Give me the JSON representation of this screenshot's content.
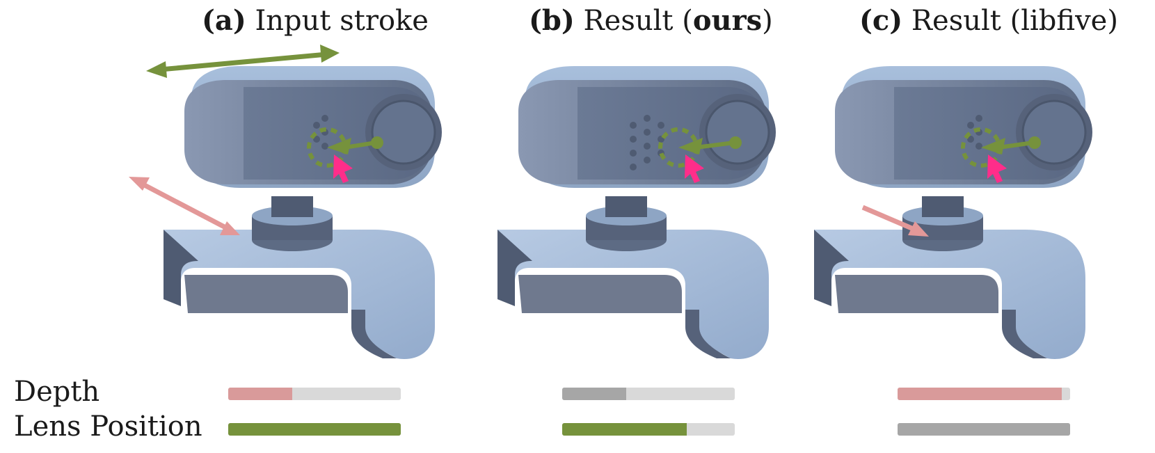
{
  "panels": [
    {
      "letter": "(a)",
      "text_before": " Input stroke",
      "emph": "",
      "text_after": ""
    },
    {
      "letter": "(b)",
      "text_before": " Result (",
      "emph": "ours",
      "text_after": ")"
    },
    {
      "letter": "(c)",
      "text_before": " Result (libfive)",
      "emph": "",
      "text_after": ""
    }
  ],
  "rows": {
    "depth_label": "Depth",
    "lens_label": "Lens Position"
  },
  "bars": {
    "depth": [
      {
        "fraction": 0.37,
        "color": "#d99a9a"
      },
      {
        "fraction": 0.37,
        "color": "#a6a6a6"
      },
      {
        "fraction": 0.95,
        "color": "#d99a9a"
      }
    ],
    "lens": [
      {
        "fraction": 1.0,
        "color": "#76923c"
      },
      {
        "fraction": 0.72,
        "color": "#76923c"
      },
      {
        "fraction": 1.0,
        "color": "#a6a6a6"
      }
    ]
  },
  "colors": {
    "body_blue": "#a8bfdc",
    "shadow_blue": "#5d6b84",
    "green_arrow": "#76923c",
    "pink_arrow": "#e39898",
    "cursor_pink": "#ff2d8a",
    "bar_track": "#d9d9d9"
  }
}
